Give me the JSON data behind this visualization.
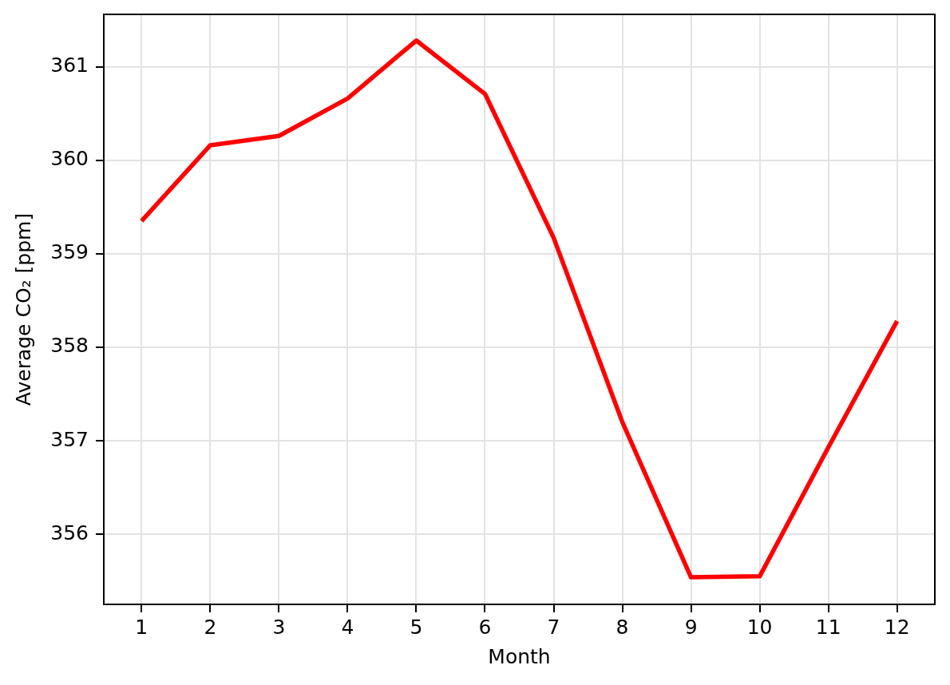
{
  "chart_data": {
    "type": "line",
    "xlabel": "Month",
    "ylabel": "Average CO₂ [ppm]",
    "x": [
      1,
      2,
      3,
      4,
      5,
      6,
      7,
      8,
      9,
      10,
      11,
      12
    ],
    "values": [
      359.35,
      360.16,
      360.26,
      360.66,
      361.28,
      360.71,
      359.17,
      357.2,
      355.54,
      355.55,
      356.93,
      358.28
    ],
    "color": "#ff0000",
    "xlim": [
      0.45,
      12.55
    ],
    "ylim": [
      355.25,
      361.56
    ],
    "xticks": [
      1,
      2,
      3,
      4,
      5,
      6,
      7,
      8,
      9,
      10,
      11,
      12
    ],
    "yticks": [
      356,
      357,
      358,
      359,
      360,
      361
    ],
    "grid": true
  }
}
